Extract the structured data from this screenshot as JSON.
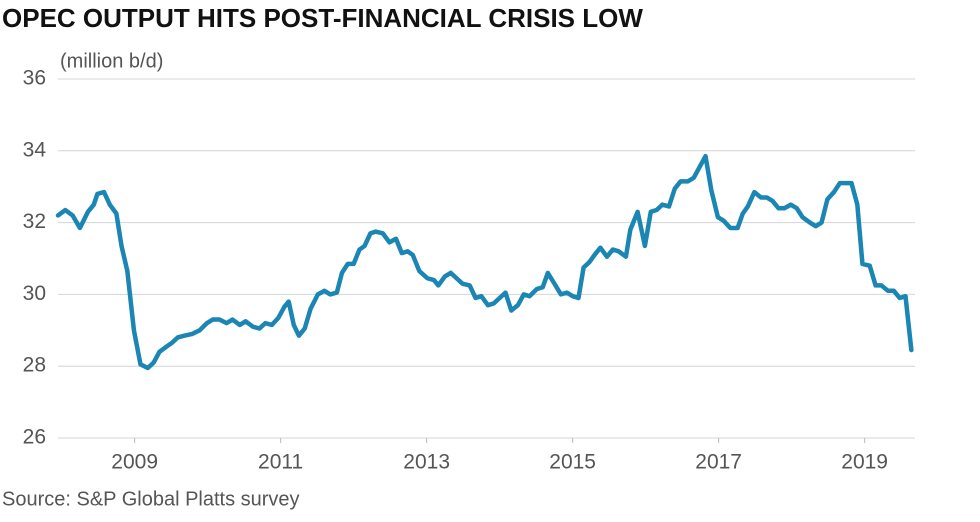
{
  "chart_data": {
    "type": "line",
    "title": "OPEC OUTPUT HITS POST-FINANCIAL CRISIS LOW",
    "y_label": "(million b/d)",
    "source": "Source: S&P Global Platts survey",
    "color": "#1b86b4",
    "grid": true,
    "xlim": [
      2007.95,
      2019.69
    ],
    "xticks": [
      2009,
      2011,
      2013,
      2015,
      2017,
      2019
    ],
    "ylim": [
      26,
      36
    ],
    "yticks": [
      26,
      28,
      30,
      32,
      34,
      36
    ],
    "x": [
      2007.95,
      2008.05,
      2008.15,
      2008.25,
      2008.36,
      2008.44,
      2008.49,
      2008.58,
      2008.66,
      2008.75,
      2008.82,
      2008.9,
      2008.99,
      2009.08,
      2009.18,
      2009.26,
      2009.34,
      2009.44,
      2009.51,
      2009.59,
      2009.68,
      2009.79,
      2009.89,
      2009.99,
      2010.07,
      2010.16,
      2010.26,
      2010.34,
      2010.44,
      2010.52,
      2010.62,
      2010.71,
      2010.79,
      2010.88,
      2010.97,
      2011.05,
      2011.11,
      2011.18,
      2011.25,
      2011.33,
      2011.41,
      2011.51,
      2011.6,
      2011.68,
      2011.77,
      2011.84,
      2011.92,
      2012,
      2012.08,
      2012.15,
      2012.23,
      2012.3,
      2012.4,
      2012.49,
      2012.58,
      2012.66,
      2012.74,
      2012.81,
      2012.9,
      2013.01,
      2013.1,
      2013.16,
      2013.25,
      2013.33,
      2013.41,
      2013.49,
      2013.59,
      2013.67,
      2013.75,
      2013.84,
      2013.92,
      2014,
      2014.08,
      2014.16,
      2014.25,
      2014.33,
      2014.41,
      2014.51,
      2014.59,
      2014.66,
      2014.75,
      2014.84,
      2014.92,
      2015,
      2015.08,
      2015.15,
      2015.23,
      2015.3,
      2015.38,
      2015.47,
      2015.55,
      2015.63,
      2015.73,
      2015.79,
      2015.89,
      2015.99,
      2016.07,
      2016.15,
      2016.23,
      2016.32,
      2016.4,
      2016.48,
      2016.58,
      2016.66,
      2016.74,
      2016.82,
      2016.9,
      2016.99,
      2017.07,
      2017.16,
      2017.26,
      2017.33,
      2017.4,
      2017.49,
      2017.58,
      2017.66,
      2017.74,
      2017.82,
      2017.9,
      2017.99,
      2018.07,
      2018.15,
      2018.25,
      2018.33,
      2018.41,
      2018.49,
      2018.58,
      2018.66,
      2018.74,
      2018.82,
      2018.9,
      2018.97,
      2019.07,
      2019.15,
      2019.23,
      2019.32,
      2019.4,
      2019.48,
      2019.56,
      2019.64
    ],
    "values": [
      32.2,
      32.35,
      32.2,
      31.85,
      32.3,
      32.5,
      32.8,
      32.85,
      32.5,
      32.25,
      31.35,
      30.65,
      29.0,
      28.05,
      27.95,
      28.1,
      28.4,
      28.55,
      28.65,
      28.8,
      28.85,
      28.9,
      29.0,
      29.2,
      29.3,
      29.3,
      29.2,
      29.3,
      29.15,
      29.25,
      29.1,
      29.05,
      29.2,
      29.15,
      29.35,
      29.65,
      29.8,
      29.15,
      28.85,
      29.05,
      29.6,
      30.0,
      30.1,
      30.0,
      30.05,
      30.6,
      30.85,
      30.85,
      31.25,
      31.35,
      31.7,
      31.75,
      31.7,
      31.45,
      31.55,
      31.15,
      31.2,
      31.1,
      30.65,
      30.45,
      30.4,
      30.25,
      30.5,
      30.6,
      30.45,
      30.3,
      30.25,
      29.9,
      29.95,
      29.7,
      29.75,
      29.9,
      30.05,
      29.55,
      29.7,
      30.0,
      29.95,
      30.15,
      30.2,
      30.6,
      30.3,
      30.0,
      30.05,
      29.95,
      29.9,
      30.75,
      30.9,
      31.1,
      31.3,
      31.05,
      31.25,
      31.2,
      31.05,
      31.8,
      32.3,
      31.35,
      32.3,
      32.35,
      32.5,
      32.45,
      32.95,
      33.15,
      33.15,
      33.25,
      33.55,
      33.85,
      32.9,
      32.15,
      32.05,
      31.85,
      31.85,
      32.25,
      32.45,
      32.85,
      32.7,
      32.7,
      32.6,
      32.4,
      32.4,
      32.5,
      32.4,
      32.15,
      32.0,
      31.9,
      32.0,
      32.65,
      32.85,
      33.1,
      33.1,
      33.1,
      32.5,
      30.85,
      30.8,
      30.25,
      30.25,
      30.1,
      30.1,
      29.9,
      29.95,
      28.45
    ]
  }
}
